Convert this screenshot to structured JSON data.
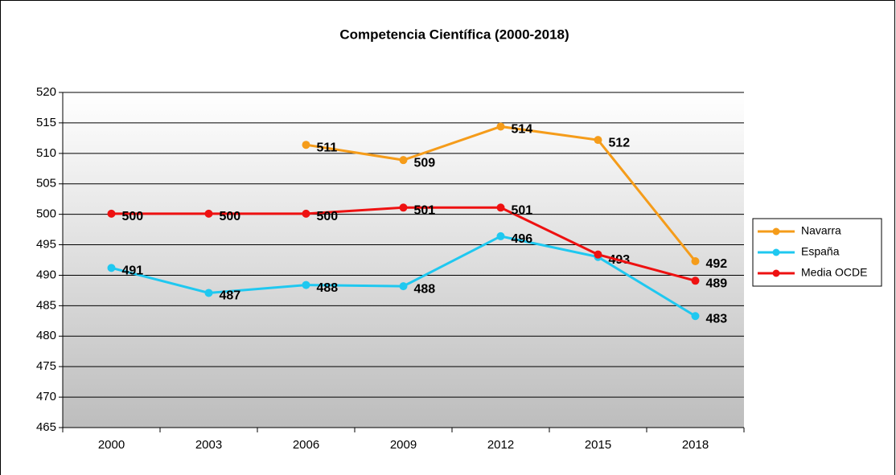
{
  "chart_data": {
    "type": "line",
    "title": "Competencia Científica (2000-2018)",
    "categories": [
      "2000",
      "2003",
      "2006",
      "2009",
      "2012",
      "2015",
      "2018"
    ],
    "series": [
      {
        "name": "Navarra",
        "color": "#f59c1a",
        "values": [
          null,
          null,
          511.4,
          508.9,
          514.4,
          512.2,
          492.3
        ],
        "value_labels": [
          null,
          null,
          "511",
          "509",
          "514",
          "512",
          "492"
        ]
      },
      {
        "name": "España",
        "color": "#1fc8f0",
        "values": [
          491.2,
          487.1,
          488.4,
          488.2,
          496.4,
          493.0,
          483.3
        ],
        "value_labels": [
          "491",
          "487",
          "488",
          "488",
          "496",
          "493",
          "483"
        ]
      },
      {
        "name": "Media OCDE",
        "color": "#ee1111",
        "values": [
          500.1,
          500.1,
          500.1,
          501.1,
          501.1,
          493.4,
          489.1
        ],
        "value_labels": [
          "500",
          "500",
          "500",
          "501",
          "501",
          null,
          "489"
        ]
      }
    ],
    "ylim": [
      465,
      520
    ],
    "yticks": [
      465,
      470,
      475,
      480,
      485,
      490,
      495,
      500,
      505,
      510,
      515,
      520
    ],
    "grid": true,
    "legend": "right"
  }
}
